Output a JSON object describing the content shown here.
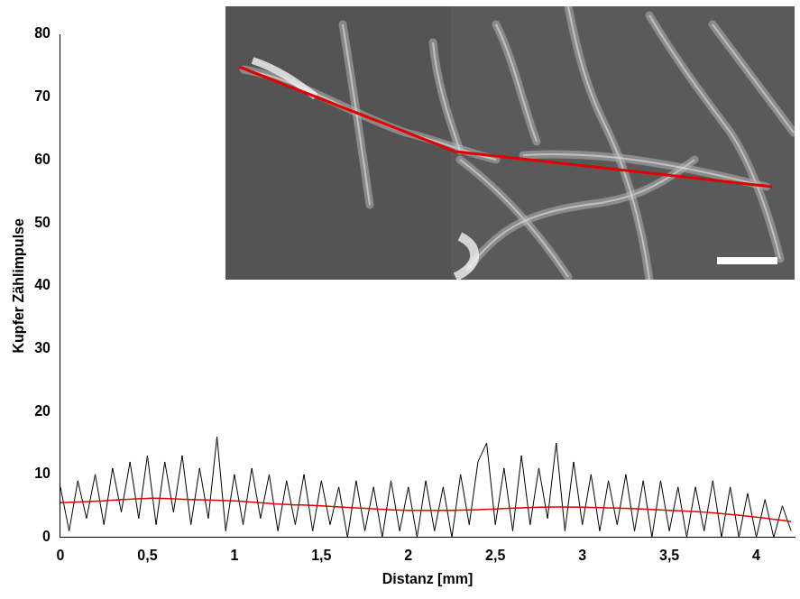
{
  "chart_data": {
    "type": "line",
    "x_label": "Distanz [mm]",
    "y_label": "Kupfer Zählimpulse",
    "xlim": [
      0,
      4.22
    ],
    "xticks": [
      0,
      {
        "value": 0.5,
        "label": "0,5"
      },
      1,
      {
        "value": 1.5,
        "label": "1,5"
      },
      2,
      {
        "value": 2.5,
        "label": "2,5"
      },
      3,
      {
        "value": 3.5,
        "label": "3,5"
      },
      4
    ],
    "ylim": [
      0,
      80
    ],
    "yticks": [
      0,
      10,
      20,
      30,
      40,
      50,
      60,
      70,
      80
    ],
    "grid": false,
    "series": [
      {
        "color": "#000000",
        "x": [
          0,
          0.05,
          0.1,
          0.15,
          0.2,
          0.25,
          0.3,
          0.35,
          0.4,
          0.45,
          0.5,
          0.55,
          0.6,
          0.65,
          0.7,
          0.75,
          0.8,
          0.85,
          0.9,
          0.95,
          1.0,
          1.05,
          1.1,
          1.15,
          1.2,
          1.25,
          1.3,
          1.35,
          1.4,
          1.45,
          1.5,
          1.55,
          1.6,
          1.65,
          1.7,
          1.75,
          1.8,
          1.85,
          1.9,
          1.95,
          2.0,
          2.05,
          2.1,
          2.15,
          2.2,
          2.25,
          2.3,
          2.35,
          2.4,
          2.45,
          2.5,
          2.55,
          2.6,
          2.65,
          2.7,
          2.75,
          2.8,
          2.85,
          2.9,
          2.95,
          3.0,
          3.05,
          3.1,
          3.15,
          3.2,
          3.25,
          3.3,
          3.35,
          3.4,
          3.45,
          3.5,
          3.55,
          3.6,
          3.65,
          3.7,
          3.75,
          3.8,
          3.85,
          3.9,
          3.95,
          4.0,
          4.05,
          4.1,
          4.15,
          4.2
        ],
        "values": [
          8,
          1,
          9,
          3,
          10,
          2,
          11,
          4,
          12,
          3,
          13,
          2,
          12,
          4,
          13,
          2,
          11,
          3,
          16,
          1,
          10,
          2,
          11,
          3,
          10,
          1,
          9,
          2,
          10,
          1,
          9,
          2,
          8,
          0,
          9,
          1,
          8,
          0,
          9,
          1,
          8,
          0,
          9,
          1,
          8,
          0,
          10,
          2,
          12,
          15,
          2,
          11,
          1,
          13,
          2,
          11,
          3,
          15,
          1,
          12,
          2,
          10,
          1,
          9,
          2,
          10,
          1,
          9,
          0,
          9,
          1,
          8,
          0,
          8,
          1,
          9,
          0,
          8,
          0,
          7,
          0,
          6,
          0,
          5,
          1
        ]
      },
      {
        "color": "#e00000",
        "x": [
          0,
          0.25,
          0.5,
          0.75,
          1.0,
          1.25,
          1.5,
          1.75,
          2.0,
          2.25,
          2.5,
          2.75,
          3.0,
          3.25,
          3.5,
          3.75,
          4.0,
          4.2
        ],
        "values": [
          5.5,
          5.8,
          6.2,
          6.0,
          5.8,
          5.3,
          5.0,
          4.6,
          4.3,
          4.3,
          4.5,
          4.8,
          4.8,
          4.6,
          4.3,
          3.9,
          3.2,
          2.5
        ]
      }
    ]
  }
}
